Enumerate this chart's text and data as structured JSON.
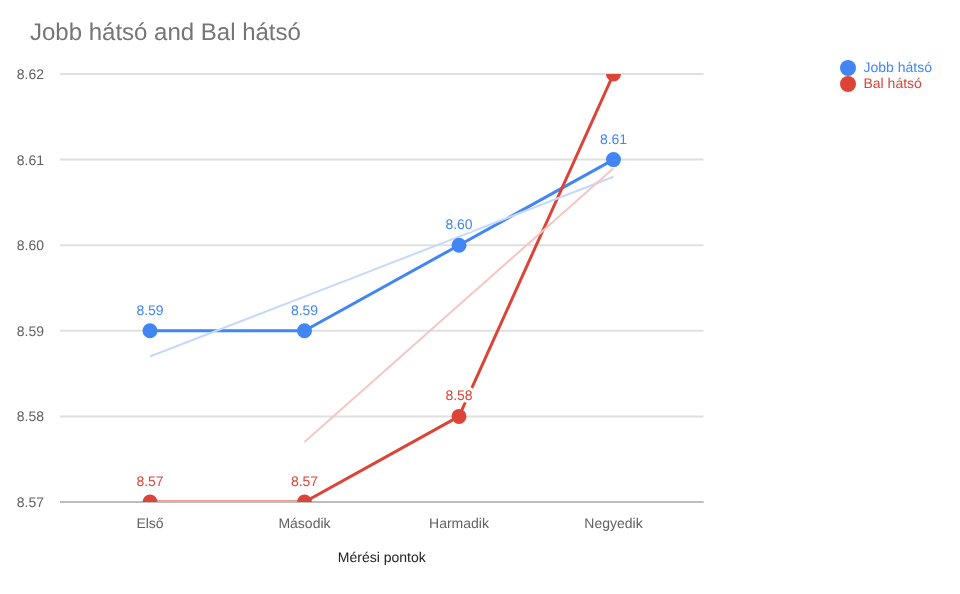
{
  "chart_data": {
    "type": "line",
    "title": "Jobb hátsó  and Bal hátsó",
    "xlabel": "Mérési pontok",
    "categories": [
      "Első",
      "Második",
      "Harmadik",
      "Negyedik"
    ],
    "series": [
      {
        "name": "Jobb hátsó",
        "color": "#4285f4",
        "values": [
          8.59,
          8.59,
          8.6,
          8.61
        ],
        "value_labels": [
          "8.59",
          "8.59",
          "8.60",
          "8.61"
        ]
      },
      {
        "name": "Bal hátsó",
        "color": "#db4437",
        "values": [
          8.57,
          8.57,
          8.58,
          8.62
        ],
        "value_labels": [
          "8.57",
          "8.57",
          "8.58",
          null
        ]
      },
      {
        "type": "line",
        "color": "#c6d9fb",
        "marker": "none",
        "values": [
          8.587,
          8.594,
          8.601,
          8.608
        ]
      },
      {
        "type": "line",
        "color": "#f4c7c3",
        "marker": "none",
        "values": [
          null,
          8.577,
          8.593,
          8.609
        ]
      }
    ],
    "ylim": [
      8.57,
      8.62
    ],
    "yticks": [
      8.57,
      8.58,
      8.59,
      {
        "value": 8.6,
        "label": "8.60"
      },
      8.61,
      8.62
    ],
    "grid": "y",
    "legend": "top right",
    "marker": "circle",
    "line_style": "solid"
  }
}
